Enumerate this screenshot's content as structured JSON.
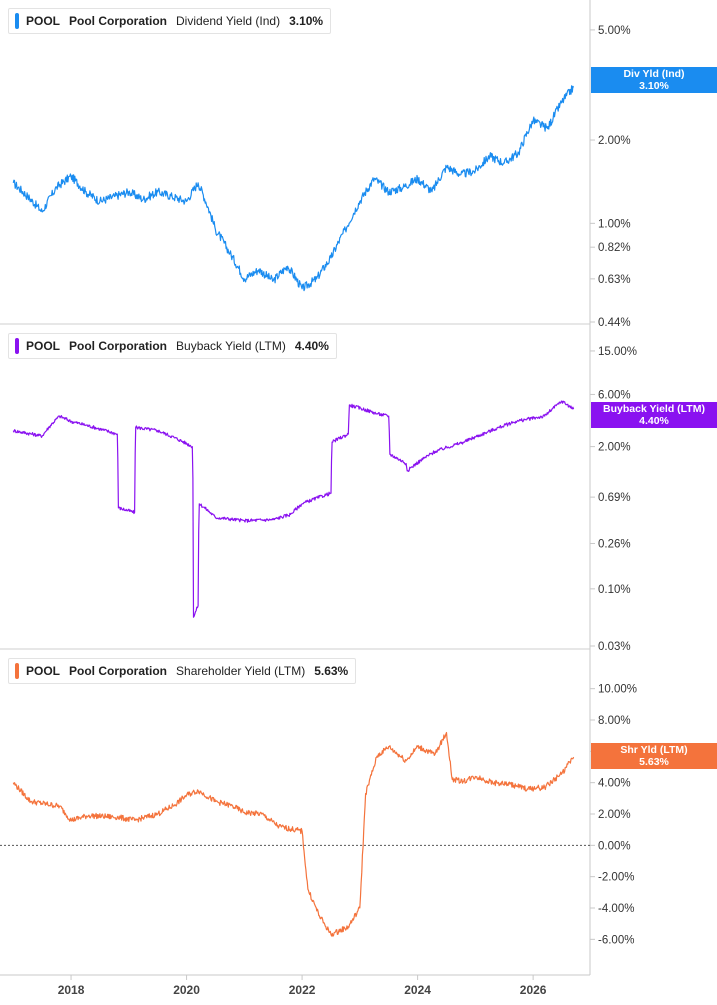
{
  "colors": {
    "dividend": "#1a8cf0",
    "buyback": "#8a12f0",
    "shareholder": "#f4733c"
  },
  "chart_data": [
    {
      "type": "line",
      "ticker": "POOL",
      "company": "Pool Corporation",
      "metric": "Dividend Yield (Ind)",
      "current": "3.10%",
      "tag": {
        "line1": "Div Yld (Ind)",
        "line2": "3.10%"
      },
      "yscale": "log",
      "yticks": [
        5.0,
        2.0,
        1.0,
        0.82,
        0.63,
        0.44
      ],
      "ytick_labels": [
        "5.00%",
        "2.00%",
        "1.00%",
        "0.82%",
        "0.63%",
        "0.44%"
      ],
      "ylim": [
        0.44,
        6.0
      ],
      "x": [
        2017.0,
        2017.25,
        2017.5,
        2017.75,
        2018.0,
        2018.25,
        2018.5,
        2018.75,
        2019.0,
        2019.25,
        2019.5,
        2019.75,
        2020.0,
        2020.2,
        2020.5,
        2020.75,
        2021.0,
        2021.25,
        2021.5,
        2021.75,
        2022.0,
        2022.25,
        2022.5,
        2022.75,
        2023.0,
        2023.25,
        2023.5,
        2023.75,
        2024.0,
        2024.25,
        2024.5,
        2024.75,
        2025.0,
        2025.25,
        2025.5,
        2025.75,
        2026.0,
        2026.25,
        2026.5,
        2026.7
      ],
      "values": [
        1.4,
        1.25,
        1.1,
        1.35,
        1.48,
        1.3,
        1.2,
        1.25,
        1.3,
        1.22,
        1.3,
        1.25,
        1.2,
        1.4,
        0.95,
        0.78,
        0.63,
        0.68,
        0.62,
        0.7,
        0.58,
        0.63,
        0.75,
        0.95,
        1.2,
        1.45,
        1.3,
        1.35,
        1.45,
        1.3,
        1.6,
        1.5,
        1.55,
        1.75,
        1.65,
        1.8,
        2.35,
        2.2,
        2.75,
        3.1
      ]
    },
    {
      "type": "line",
      "ticker": "POOL",
      "company": "Pool Corporation",
      "metric": "Buyback Yield (LTM)",
      "current": "4.40%",
      "tag": {
        "line1": "Buyback Yield (LTM)",
        "line2": "4.40%"
      },
      "yscale": "log",
      "yticks": [
        15.0,
        6.0,
        2.0,
        0.69,
        0.26,
        0.1,
        0.03
      ],
      "ytick_labels": [
        "15.00%",
        "6.00%",
        "2.00%",
        "0.69%",
        "0.26%",
        "0.10%",
        "0.03%"
      ],
      "ylim": [
        0.03,
        17.0
      ],
      "x": [
        2017.0,
        2017.5,
        2017.8,
        2018.0,
        2018.5,
        2018.8,
        2018.82,
        2019.1,
        2019.12,
        2019.5,
        2019.8,
        2020.1,
        2020.12,
        2020.2,
        2020.22,
        2020.5,
        2021.0,
        2021.5,
        2021.8,
        2022.0,
        2022.5,
        2022.52,
        2022.8,
        2022.82,
        2023.3,
        2023.5,
        2023.52,
        2023.8,
        2023.82,
        2024.3,
        2024.8,
        2025.2,
        2025.7,
        2026.2,
        2026.5,
        2026.7
      ],
      "values": [
        2.8,
        2.5,
        3.8,
        3.4,
        2.9,
        2.6,
        0.55,
        0.5,
        3.0,
        2.8,
        2.4,
        2.0,
        0.055,
        0.07,
        0.6,
        0.45,
        0.42,
        0.43,
        0.48,
        0.6,
        0.75,
        2.2,
        2.6,
        4.8,
        4.0,
        3.8,
        1.7,
        1.4,
        1.2,
        1.8,
        2.2,
        2.7,
        3.4,
        3.8,
        5.2,
        4.4
      ]
    },
    {
      "type": "line",
      "ticker": "POOL",
      "company": "Pool Corporation",
      "metric": "Shareholder Yield (LTM)",
      "current": "5.63%",
      "tag": {
        "line1": "Shr Yld (LTM)",
        "line2": "5.63%"
      },
      "yscale": "linear",
      "yticks": [
        10.0,
        8.0,
        6.0,
        4.0,
        2.0,
        0.0,
        -2.0,
        -4.0,
        -6.0
      ],
      "ytick_labels": [
        "10.00%",
        "8.00%",
        "6.00%",
        "4.00%",
        "2.00%",
        "0.00%",
        "-2.00%",
        "-4.00%",
        "-6.00%"
      ],
      "ylim": [
        -7.0,
        11.0
      ],
      "zero_line": true,
      "x": [
        2017.0,
        2017.3,
        2017.8,
        2018.0,
        2018.3,
        2018.8,
        2019.1,
        2019.5,
        2019.8,
        2020.0,
        2020.2,
        2020.5,
        2020.8,
        2021.0,
        2021.3,
        2021.6,
        2022.0,
        2022.1,
        2022.3,
        2022.5,
        2022.8,
        2023.0,
        2023.1,
        2023.3,
        2023.5,
        2023.8,
        2024.0,
        2024.3,
        2024.5,
        2024.6,
        2024.8,
        2025.0,
        2025.3,
        2025.6,
        2025.9,
        2026.2,
        2026.5,
        2026.7
      ],
      "values": [
        4.0,
        2.8,
        2.5,
        1.6,
        1.9,
        1.8,
        1.6,
        2.0,
        2.6,
        3.2,
        3.5,
        2.8,
        2.5,
        2.1,
        2.0,
        1.2,
        0.9,
        -2.8,
        -4.5,
        -5.7,
        -5.2,
        -4.0,
        3.3,
        5.7,
        6.3,
        5.4,
        6.3,
        5.8,
        7.2,
        4.2,
        4.1,
        4.4,
        4.0,
        3.9,
        3.6,
        3.7,
        4.6,
        5.63
      ]
    }
  ],
  "xaxis": {
    "ticks": [
      2018,
      2020,
      2022,
      2024,
      2026
    ],
    "xlim": [
      2016.77,
      2026.95
    ]
  }
}
